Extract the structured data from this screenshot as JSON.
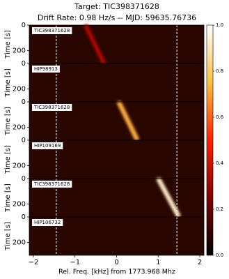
{
  "chart_data": {
    "type": "waterfall",
    "title": "Target: TIC398371628",
    "subtitle": "Drift Rate: 0.98 Hz/s -- MJD: 59635.76736",
    "x_label": "Rel. Freq. [kHz] from 1773.968 Mhz",
    "y_label": "Time [s]",
    "xlim": [
      -2.1,
      2.1
    ],
    "xticks": [
      {
        "value": -2,
        "label": "−2"
      },
      {
        "value": -1,
        "label": "−1"
      },
      0,
      1,
      2
    ],
    "ylim": [
      0,
      300
    ],
    "yticks": [
      0,
      200
    ],
    "dashed_lines": [
      -1.45,
      1.45
    ],
    "background_color": "#2a0600",
    "panels": [
      {
        "label": "TIC398371628",
        "signal_x": [
          -0.75,
          -0.3
        ],
        "intensity": 0.3
      },
      {
        "label": "HIP98913"
      },
      {
        "label": "TIC398371628",
        "signal_x": [
          0.05,
          0.5
        ],
        "intensity": 0.7
      },
      {
        "label": "HIP109169"
      },
      {
        "label": "TIC398371628",
        "signal_x": [
          1.0,
          1.5
        ],
        "intensity": 0.9
      },
      {
        "label": "HIP106732"
      }
    ],
    "colorbar": {
      "lim": [
        0,
        1
      ],
      "ticks": [
        {
          "value": 0,
          "label": "0.0"
        },
        {
          "value": 0.2,
          "label": "0.2"
        },
        {
          "value": 0.4,
          "label": "0.4"
        },
        {
          "value": 0.6,
          "label": "0.6"
        },
        {
          "value": 0.8,
          "label": "0.8"
        },
        {
          "value": 1,
          "label": "1.0"
        }
      ]
    }
  }
}
